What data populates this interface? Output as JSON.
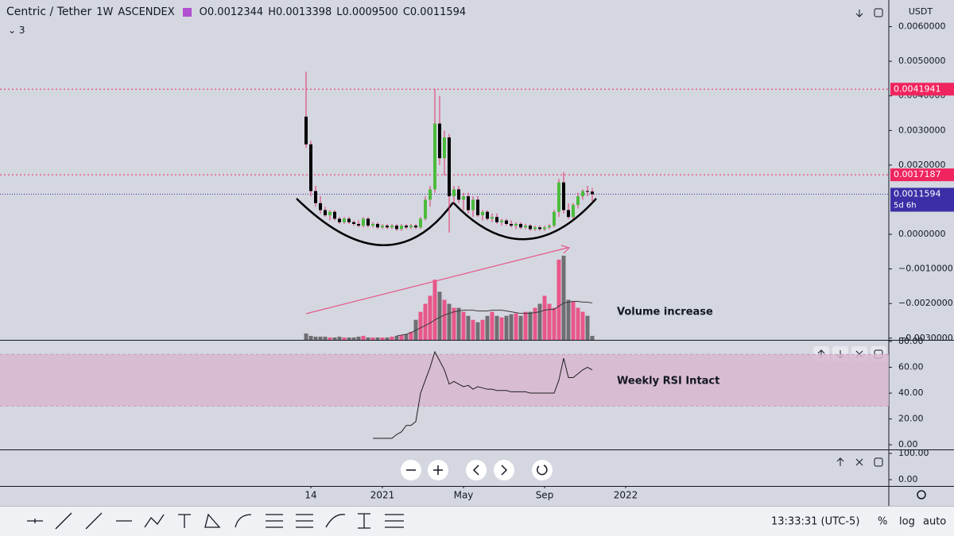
{
  "header": {
    "symbol": "Centric / Tether",
    "interval": "1W",
    "exchange": "ASCENDEX",
    "ohlc": [
      "O0.0012344",
      "H0.0013398",
      "L0.0009500",
      "C0.0011594"
    ],
    "indicators": "3"
  },
  "footer": {
    "clock": "13:33:31 (UTC-5)",
    "percent": "%",
    "log": "log",
    "auto": "auto"
  },
  "chart_data": {
    "type": "candlestick",
    "unit": "USDT",
    "candles": {
      "open": [
        0.0034,
        0.0026,
        0.00125,
        0.0009,
        0.0007,
        0.00055,
        0.00065,
        0.00045,
        0.00035,
        0.00045,
        0.00035,
        0.0003,
        0.00025,
        0.00045,
        0.00025,
        0.0003,
        0.0002,
        0.00025,
        0.0002,
        0.00025,
        0.00015,
        0.00025,
        0.0002,
        0.00025,
        0.0002,
        0.00045,
        0.001,
        0.0013,
        0.0032,
        0.0022,
        0.0028,
        0.0011,
        0.0013,
        0.001,
        0.0011,
        0.0007,
        0.001,
        0.00055,
        0.00065,
        0.00045,
        0.0005,
        0.00035,
        0.0004,
        0.0003,
        0.00025,
        0.0003,
        0.0002,
        0.00025,
        0.00015,
        0.0002,
        0.00015,
        0.0002,
        0.00025,
        0.00065,
        0.0015,
        0.0007,
        0.0005,
        0.00085,
        0.0011,
        0.00125,
        0.0012344
      ],
      "high": [
        0.0047,
        0.0027,
        0.0014,
        0.0011,
        0.0008,
        0.0007,
        0.0007,
        0.0005,
        0.0005,
        0.0005,
        0.0004,
        0.0004,
        0.0005,
        0.0005,
        0.00035,
        0.00035,
        0.0003,
        0.0003,
        0.0003,
        0.0003,
        0.0003,
        0.0003,
        0.0003,
        0.0003,
        0.0005,
        0.0011,
        0.0014,
        0.0042,
        0.004,
        0.003,
        0.0029,
        0.0014,
        0.0014,
        0.0012,
        0.0012,
        0.0011,
        0.0011,
        0.0007,
        0.0007,
        0.0006,
        0.0006,
        0.00045,
        0.00045,
        0.0004,
        0.00035,
        0.00035,
        0.0003,
        0.0003,
        0.00025,
        0.00025,
        0.00025,
        0.0003,
        0.0007,
        0.0016,
        0.0018,
        0.0009,
        0.0009,
        0.0012,
        0.0013,
        0.0014,
        0.0013398
      ],
      "low": [
        0.0025,
        0.0011,
        0.0008,
        0.0006,
        0.0005,
        0.0004,
        0.0004,
        0.0003,
        0.0003,
        0.0003,
        0.00025,
        0.0002,
        0.0002,
        0.0002,
        0.0002,
        0.00015,
        0.00015,
        0.00015,
        0.00015,
        0.0001,
        0.0001,
        0.00015,
        0.00015,
        0.00015,
        0.00015,
        0.0004,
        0.0008,
        0.0012,
        0.002,
        0.0017,
        5e-05,
        0.0009,
        0.0009,
        0.0007,
        0.0006,
        0.0005,
        0.0005,
        0.0004,
        0.0004,
        0.00035,
        0.0003,
        0.00025,
        0.00025,
        0.0002,
        0.00015,
        0.00015,
        0.00015,
        0.0001,
        0.0001,
        0.0001,
        0.0001,
        0.00015,
        0.0002,
        0.0005,
        0.0006,
        0.00045,
        0.00045,
        0.00075,
        0.001,
        0.0011,
        0.00095
      ],
      "close": [
        0.0026,
        0.00125,
        0.0009,
        0.0007,
        0.00055,
        0.00065,
        0.00045,
        0.00035,
        0.00045,
        0.00035,
        0.0003,
        0.00025,
        0.00045,
        0.00025,
        0.0003,
        0.0002,
        0.00025,
        0.0002,
        0.00025,
        0.00015,
        0.00025,
        0.0002,
        0.00025,
        0.0002,
        0.00045,
        0.001,
        0.0013,
        0.0032,
        0.0022,
        0.0028,
        0.0011,
        0.0013,
        0.001,
        0.0011,
        0.0007,
        0.001,
        0.00055,
        0.00065,
        0.00045,
        0.0005,
        0.00035,
        0.0004,
        0.0003,
        0.00025,
        0.0003,
        0.0002,
        0.00025,
        0.00015,
        0.0002,
        0.00015,
        0.0002,
        0.00025,
        0.00065,
        0.0015,
        0.0007,
        0.0005,
        0.00085,
        0.0011,
        0.00125,
        0.0012344,
        0.0011594
      ]
    },
    "up_color": "#4cbb3c",
    "down_color": "#000000",
    "wick_color": "#e2306c",
    "ylim": [
      -0.00305,
      0.00677
    ],
    "yticks": [
      {
        "value": 0.006,
        "label": "0.0060000"
      },
      {
        "value": 0.005,
        "label": "0.0050000"
      },
      {
        "value": 0.004,
        "label": "0.0040000"
      },
      {
        "value": 0.003,
        "label": "0.0030000"
      },
      {
        "value": 0.002,
        "label": "0.0020000"
      },
      {
        "value": 0,
        "label": "0.0000000"
      },
      {
        "value": -0.001,
        "label": "−0.0010000"
      },
      {
        "value": -0.002,
        "label": "−0.0020000"
      },
      {
        "value": -0.003,
        "label": "−0.0030000"
      }
    ],
    "levels": [
      {
        "value": 0.0041941,
        "color": "#f0245f"
      },
      {
        "value": 0.0017187,
        "color": "#f0245f"
      }
    ],
    "last_price": {
      "value": 0.0011594,
      "countdown": "5d 6h",
      "color": "#3b2ea6"
    },
    "xticks": [
      {
        "value": 1,
        "label": "14"
      },
      {
        "value": 16,
        "label": "2021"
      },
      {
        "value": 33,
        "label": "May"
      },
      {
        "value": 50,
        "label": "Sep"
      },
      {
        "value": 67,
        "label": "2022"
      }
    ],
    "volume": {
      "values": [
        8,
        5,
        4,
        4,
        4,
        3,
        3,
        4,
        3,
        3,
        3,
        4,
        5,
        3,
        3,
        3,
        3,
        3,
        4,
        5,
        6,
        7,
        10,
        25,
        35,
        45,
        55,
        75,
        60,
        50,
        45,
        40,
        40,
        35,
        30,
        25,
        22,
        25,
        30,
        35,
        30,
        28,
        30,
        32,
        33,
        30,
        35,
        35,
        40,
        45,
        55,
        45,
        40,
        100,
        105,
        50,
        48,
        40,
        35,
        30,
        5
      ],
      "ma": [
        null,
        null,
        null,
        null,
        null,
        null,
        null,
        null,
        null,
        null,
        null,
        null,
        null,
        null,
        null,
        null,
        null,
        null,
        null,
        5,
        6,
        7,
        9,
        12,
        15,
        18,
        21,
        25,
        28,
        31,
        33,
        35,
        36,
        37,
        37,
        37,
        36,
        36,
        36,
        37,
        37,
        37,
        36,
        35,
        34,
        33,
        33,
        33,
        34,
        35,
        37,
        38,
        38,
        42,
        46,
        47,
        48,
        48,
        47,
        47,
        46
      ],
      "up_color": "#e8578a",
      "down_color": "#6f6f73",
      "ma_color": "#3a3a3a"
    },
    "annotations": [
      "Volume increase",
      "Weekly RSI Intact"
    ],
    "rsi": {
      "values": [
        null,
        null,
        null,
        null,
        null,
        null,
        null,
        null,
        null,
        null,
        null,
        null,
        null,
        null,
        5,
        5,
        5,
        5,
        5,
        8,
        10,
        15,
        15,
        18,
        40,
        50,
        60,
        72,
        65,
        58,
        47,
        49,
        47,
        45,
        46,
        43,
        45,
        44,
        43,
        43,
        42,
        42,
        42,
        41,
        41,
        41,
        41,
        40,
        40,
        40,
        40,
        40,
        40,
        50,
        67,
        52,
        52,
        55,
        58,
        60,
        58
      ],
      "ylim": [
        -3,
        80
      ],
      "yticks": [
        {
          "value": 80,
          "label": "80.00"
        },
        {
          "value": 60,
          "label": "60.00"
        },
        {
          "value": 40,
          "label": "40.00"
        },
        {
          "value": 20,
          "label": "20.00"
        },
        {
          "value": 0,
          "label": "0.00"
        }
      ],
      "band": [
        30,
        70
      ],
      "band_color": "#d8b7cf",
      "line_color": "#1e1e1e"
    },
    "pane3": {
      "ylim": [
        -24,
        112
      ],
      "yticks": [
        {
          "value": 100,
          "label": "100.00"
        },
        {
          "value": 0,
          "label": "0.00"
        }
      ]
    }
  }
}
